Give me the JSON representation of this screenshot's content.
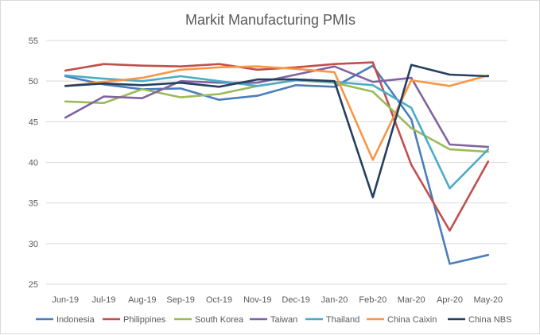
{
  "chart_data": {
    "type": "line",
    "title": "Markit Manufacturing PMIs",
    "xlabel": "",
    "ylabel": "",
    "ylim": [
      25,
      55
    ],
    "yticks": [
      25,
      30,
      35,
      40,
      45,
      50,
      55
    ],
    "grid": true,
    "legend_position": "bottom",
    "categories": [
      "Jun-19",
      "Jul-19",
      "Aug-19",
      "Sep-19",
      "Oct-19",
      "Nov-19",
      "Dec-19",
      "Jan-20",
      "Feb-20",
      "Mar-20",
      "Apr-20",
      "May-20"
    ],
    "series": [
      {
        "name": "Indonesia",
        "color": "#4a7ebb",
        "values": [
          50.6,
          49.6,
          49.0,
          49.1,
          47.7,
          48.2,
          49.5,
          49.3,
          51.9,
          45.3,
          27.5,
          28.6
        ]
      },
      {
        "name": "Philippines",
        "color": "#c0504d",
        "values": [
          51.3,
          52.1,
          51.9,
          51.8,
          52.1,
          51.4,
          51.7,
          52.1,
          52.3,
          39.7,
          31.6,
          40.1
        ]
      },
      {
        "name": "South Korea",
        "color": "#9bbb59",
        "values": [
          47.5,
          47.3,
          49.0,
          48.0,
          48.4,
          49.4,
          50.1,
          49.8,
          48.7,
          44.2,
          41.6,
          41.3
        ]
      },
      {
        "name": "Taiwan",
        "color": "#8064a2",
        "values": [
          45.5,
          48.1,
          47.9,
          50.0,
          49.8,
          49.8,
          50.8,
          51.8,
          49.9,
          50.4,
          42.2,
          41.9
        ]
      },
      {
        "name": "Thailand",
        "color": "#4bacc6",
        "values": [
          50.7,
          50.3,
          50.0,
          50.6,
          50.0,
          49.4,
          50.1,
          49.9,
          49.5,
          46.7,
          36.8,
          41.6
        ]
      },
      {
        "name": "China Caixin",
        "color": "#f79646",
        "values": [
          49.4,
          49.9,
          50.4,
          51.4,
          51.7,
          51.8,
          51.5,
          51.1,
          40.3,
          50.1,
          49.4,
          50.7
        ]
      },
      {
        "name": "China NBS",
        "color": "#243f60",
        "values": [
          49.4,
          49.7,
          49.5,
          49.8,
          49.3,
          50.2,
          50.2,
          50.0,
          35.7,
          52.0,
          50.8,
          50.6
        ]
      }
    ]
  }
}
